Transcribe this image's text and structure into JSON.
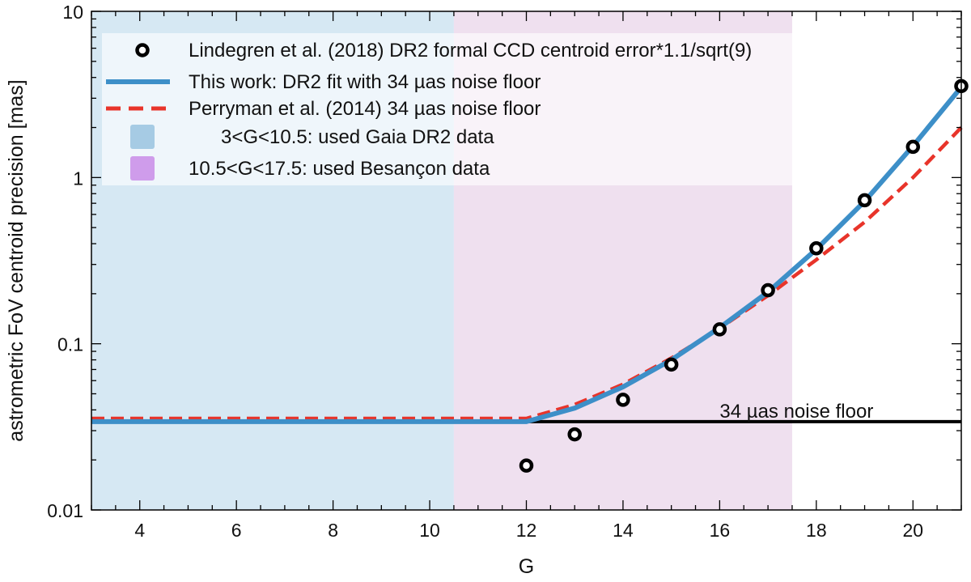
{
  "chart_data": {
    "type": "line",
    "xlabel": "G",
    "ylabel": "astrometric FoV centroid precision [mas]",
    "xlim": [
      3,
      21
    ],
    "ylim": [
      0.01,
      10
    ],
    "yscale": "log",
    "xticks": [
      4,
      6,
      8,
      10,
      12,
      14,
      16,
      18,
      20
    ],
    "yticks": [
      {
        "value": 0.01,
        "label": "0.01"
      },
      {
        "value": 0.1,
        "label": "0.1"
      },
      {
        "value": 1,
        "label": "1"
      },
      {
        "value": 10,
        "label": "10"
      }
    ],
    "regions": [
      {
        "name": "3<G<10.5: used Gaia DR2 data",
        "from": 3,
        "to": 10.5,
        "color": "#d6e8f3",
        "legend_color": "#a6cbe4"
      },
      {
        "name": "10.5<G<17.5: used Besançon data",
        "from": 10.5,
        "to": 17.5,
        "color": "#efe0ef",
        "legend_color": "#cf9ceb"
      }
    ],
    "series": [
      {
        "name": "Lindegren et al. (2018) DR2 formal CCD centroid error*1.1/sqrt(9)",
        "style": "marker-circle",
        "color": "#000000",
        "x": [
          12,
          13,
          14,
          15,
          16,
          17,
          18,
          19,
          20,
          21
        ],
        "y": [
          0.0185,
          0.0285,
          0.046,
          0.075,
          0.122,
          0.21,
          0.375,
          0.73,
          1.53,
          3.55
        ]
      },
      {
        "name": "This work: DR2 fit with 34 µas noise floor",
        "style": "solid",
        "color": "#3d8fc8",
        "x": [
          3,
          10.5,
          12,
          13,
          14,
          15,
          16,
          17,
          18,
          19,
          20,
          21
        ],
        "y": [
          0.034,
          0.034,
          0.034,
          0.041,
          0.055,
          0.08,
          0.125,
          0.205,
          0.37,
          0.72,
          1.55,
          3.5
        ]
      },
      {
        "name": "Perryman et al. (2014) 34 µas noise floor",
        "style": "dashed",
        "color": "#e8342a",
        "x": [
          3,
          12,
          13,
          14,
          15,
          16,
          17,
          18,
          19,
          20,
          21
        ],
        "y": [
          0.0355,
          0.0355,
          0.043,
          0.057,
          0.082,
          0.124,
          0.195,
          0.32,
          0.54,
          1.0,
          2.0
        ]
      },
      {
        "name": "34 µas noise floor",
        "style": "solid-thin",
        "color": "#000000",
        "x": [
          12,
          21
        ],
        "y": [
          0.034,
          0.034
        ]
      }
    ],
    "annotations": [
      {
        "text": "34 µas noise floor",
        "x": 16,
        "y": 0.036
      }
    ],
    "legend": {
      "position": "top-left",
      "entries": [
        {
          "label": "Lindegren et al. (2018) DR2 formal CCD centroid error*1.1/sqrt(9)",
          "kind": "marker",
          "color": "#000000"
        },
        {
          "label": "This work: DR2 fit with 34 µas noise floor",
          "kind": "solid",
          "color": "#3d8fc8"
        },
        {
          "label": "Perryman et al. (2014) 34 µas noise floor",
          "kind": "dashed",
          "color": "#e8342a"
        },
        {
          "label": "3<G<10.5: used Gaia DR2 data",
          "kind": "patch",
          "color": "#a6cbe4"
        },
        {
          "label": "10.5<G<17.5: used Besançon data",
          "kind": "patch",
          "color": "#cf9ceb"
        }
      ]
    }
  }
}
